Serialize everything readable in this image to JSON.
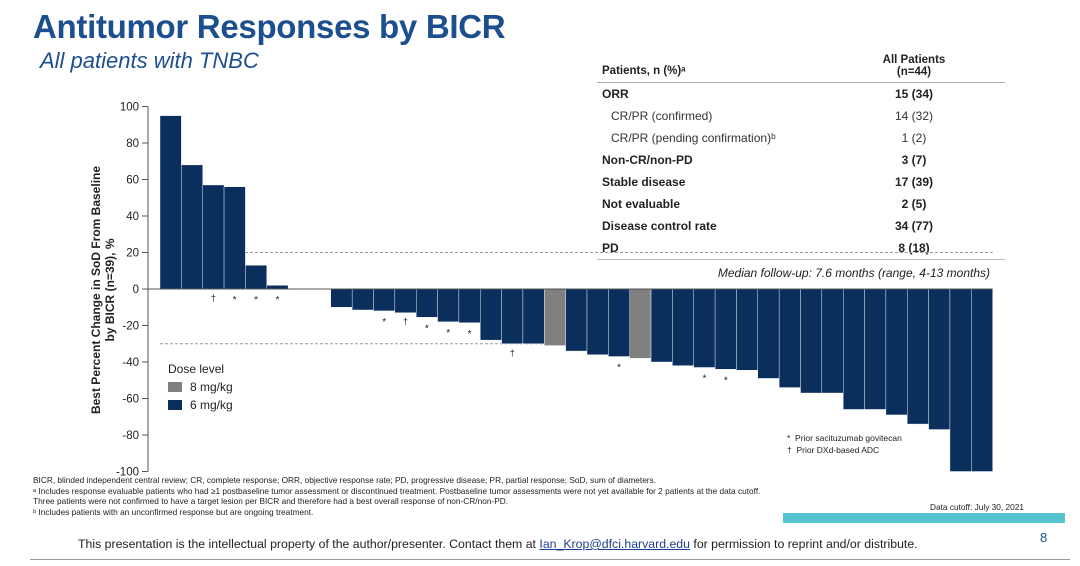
{
  "header": {
    "title": "Antitumor Responses by BICR",
    "subtitle": "All patients with TNBC"
  },
  "table": {
    "col_left": "Patients, n (%)ᵃ",
    "col_right_line1": "All Patients",
    "col_right_line2": "(n=44)",
    "rows": [
      {
        "label": "ORR",
        "value": "15 (34)",
        "bold": true
      },
      {
        "label": "CR/PR (confirmed)",
        "value": "14 (32)",
        "bold": false
      },
      {
        "label": "CR/PR (pending confirmation)ᵇ",
        "value": "1 (2)",
        "bold": false
      },
      {
        "label": "Non-CR/non-PD",
        "value": "3 (7)",
        "bold": true
      },
      {
        "label": "Stable disease",
        "value": "17 (39)",
        "bold": true
      },
      {
        "label": "Not evaluable",
        "value": "2 (5)",
        "bold": true
      },
      {
        "label": "Disease control rate",
        "value": "34 (77)",
        "bold": true
      },
      {
        "label": "PD",
        "value": "8 (18)",
        "bold": true
      }
    ]
  },
  "median_followup": "Median follow-up: 7.6 months (range, 4-13 months)",
  "chart_data": {
    "type": "bar",
    "subtype": "waterfall",
    "ylabel_line1": "Best Percent Change in SoD From Baseline",
    "ylabel_line2": "by BICR (n=39), %",
    "ylim": [
      -100,
      100
    ],
    "yticks": [
      100,
      80,
      60,
      40,
      20,
      0,
      -20,
      -40,
      -60,
      -80,
      -100
    ],
    "reference_lines": [
      20,
      -30
    ],
    "grid": false,
    "legend_title": "Dose level",
    "legend_placement": "bottom-left",
    "series": [
      {
        "name": "8 mg/kg",
        "color": "#808080"
      },
      {
        "name": "6 mg/kg",
        "color": "#0b2f5c"
      }
    ],
    "values": [
      95,
      68,
      57,
      56,
      13,
      2,
      0,
      0,
      -10,
      -11.5,
      -12,
      -13,
      -15.5,
      -18,
      -18.5,
      -28,
      -30,
      -30,
      -31,
      -34,
      -36,
      -37,
      -38,
      -40,
      -42,
      -43,
      -44,
      -44.5,
      -49,
      -54,
      -57,
      -57,
      -66,
      -66,
      -69,
      -74,
      -77,
      -100,
      -100
    ],
    "dose": [
      "6",
      "6",
      "6",
      "6",
      "6",
      "6",
      "6",
      "6",
      "6",
      "6",
      "6",
      "6",
      "6",
      "6",
      "6",
      "6",
      "6",
      "6",
      "8",
      "6",
      "6",
      "6",
      "8",
      "6",
      "6",
      "6",
      "6",
      "6",
      "6",
      "6",
      "6",
      "6",
      "6",
      "6",
      "6",
      "6",
      "6",
      "6",
      "6"
    ],
    "markers": {
      "2": "†",
      "3": "*",
      "4": "*",
      "5": "*",
      "10": "*",
      "11": "†",
      "12": "*",
      "13": "*",
      "14": "*",
      "16": "†",
      "21": "*",
      "25": "*",
      "26": "*"
    },
    "marker_legend": [
      {
        "symbol": "*",
        "label": "Prior sacituzumab govitecan"
      },
      {
        "symbol": "†",
        "label": "Prior DXd-based ADC"
      }
    ]
  },
  "footnotes": [
    "BICR, blinded independent central review; CR, complete response; ORR, objective response rate; PD, progressive disease; PR, partial response; SoD, sum of diameters.",
    "ᵃ Includes response evaluable patients who had ≥1 postbaseline tumor assessment or discontinued treatment. Postbaseline tumor assessments were not yet available for 2 patients at the data cutoff. Three patients were not confirmed to have a target lesion per BICR and therefore had a best overall response of non-CR/non-PD.",
    "ᵇ Includes patients with an unconfirmed response but are ongoing treatment."
  ],
  "data_cutoff": "Data cutoff: July 30, 2021",
  "ip_notice": {
    "before": "This presentation is the intellectual property of the author/presenter. Contact them at ",
    "email": "Ian_Krop@dfci.harvard.edu",
    "after": " for permission to reprint and/or distribute."
  },
  "page_number": "8",
  "colors": {
    "title": "#1c4f8e",
    "bar_6mg": "#0b2f5c",
    "bar_8mg": "#808080",
    "accent_bar": "#56c3d1"
  }
}
